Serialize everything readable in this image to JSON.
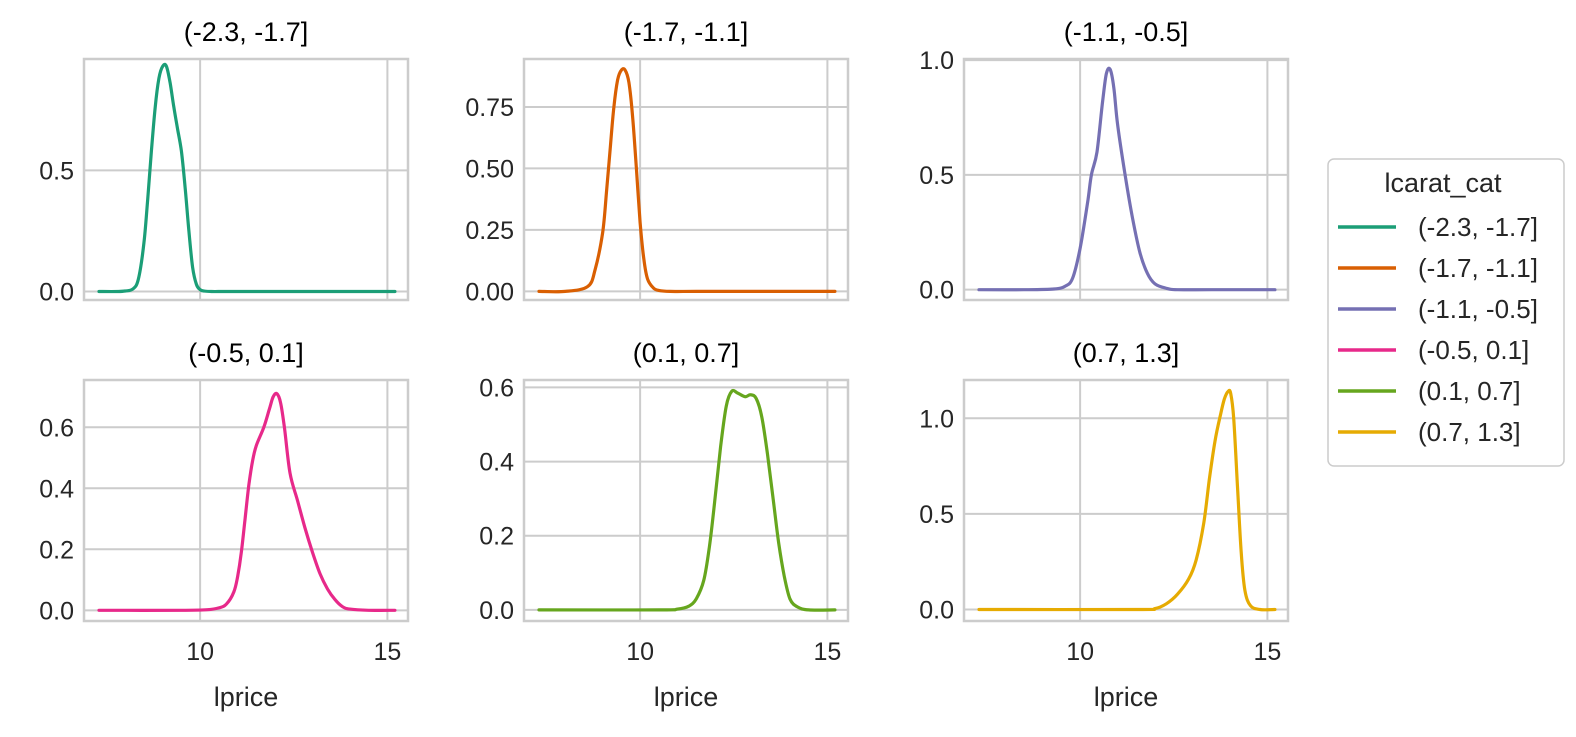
{
  "legend": {
    "title": "lcarat_cat",
    "entries": [
      "(-2.3, -1.7]",
      "(-1.7, -1.1]",
      "(-1.1, -0.5]",
      "(-0.5, 0.1]",
      "(0.1, 0.7]",
      "(0.7, 1.3]"
    ]
  },
  "chart_data": [
    {
      "type": "line",
      "title": "(-2.3, -1.7]",
      "xlabel": "",
      "ylabel": "",
      "xlim": [
        6.9,
        15.55
      ],
      "ylim": [
        -0.035,
        0.96
      ],
      "xticks": [
        10,
        15
      ],
      "xtick_labels_visible": false,
      "yticks": [
        0.0,
        0.5
      ],
      "ytick_labels": [
        "0.0",
        "0.5"
      ],
      "grid": true,
      "color": "#1b9e77",
      "series": [
        {
          "x": [
            7.3,
            7.8,
            8.0,
            8.2,
            8.35,
            8.5,
            8.6,
            8.7,
            8.8,
            8.9,
            9.0,
            9.1,
            9.2,
            9.3,
            9.4,
            9.5,
            9.6,
            9.7,
            9.8,
            9.9,
            10.0,
            10.1,
            10.3,
            10.6,
            11.0,
            12.0,
            13.0,
            14.0,
            15.2
          ],
          "y": [
            0.0,
            0.0,
            0.002,
            0.01,
            0.05,
            0.2,
            0.38,
            0.58,
            0.76,
            0.88,
            0.93,
            0.93,
            0.86,
            0.76,
            0.67,
            0.58,
            0.43,
            0.25,
            0.1,
            0.03,
            0.008,
            0.002,
            0.0,
            0.0,
            0.0,
            0.0,
            0.0,
            0.0,
            0.0
          ]
        }
      ]
    },
    {
      "type": "line",
      "title": "(-1.7, -1.1]",
      "xlabel": "",
      "ylabel": "",
      "xlim": [
        6.9,
        15.55
      ],
      "ylim": [
        -0.035,
        0.945
      ],
      "xticks": [
        10,
        15
      ],
      "xtick_labels_visible": false,
      "yticks": [
        0.0,
        0.25,
        0.5,
        0.75
      ],
      "ytick_labels": [
        "0.00",
        "0.25",
        "0.50",
        "0.75"
      ],
      "grid": true,
      "color": "#d95f02",
      "series": [
        {
          "x": [
            7.3,
            8.0,
            8.6,
            8.8,
            9.0,
            9.1,
            9.2,
            9.3,
            9.4,
            9.5,
            9.6,
            9.7,
            9.8,
            9.9,
            10.0,
            10.1,
            10.2,
            10.35,
            10.5,
            10.8,
            11.5,
            13.0,
            15.2
          ],
          "y": [
            0.0,
            0.0,
            0.02,
            0.09,
            0.24,
            0.4,
            0.58,
            0.75,
            0.86,
            0.9,
            0.9,
            0.85,
            0.71,
            0.5,
            0.28,
            0.13,
            0.05,
            0.015,
            0.004,
            0.0,
            0.0,
            0.0,
            0.0
          ]
        }
      ]
    },
    {
      "type": "line",
      "title": "(-1.1, -0.5]",
      "xlabel": "",
      "ylabel": "",
      "xlim": [
        6.9,
        15.55
      ],
      "ylim": [
        -0.045,
        1.005
      ],
      "xticks": [
        10,
        15
      ],
      "xtick_labels_visible": false,
      "yticks": [
        0.0,
        0.5,
        1.0
      ],
      "ytick_labels": [
        "0.0",
        "0.5",
        "1.0"
      ],
      "grid": true,
      "color": "#7570b3",
      "series": [
        {
          "x": [
            7.3,
            8.5,
            9.3,
            9.6,
            9.8,
            10.0,
            10.2,
            10.3,
            10.45,
            10.6,
            10.7,
            10.8,
            10.9,
            11.0,
            11.2,
            11.4,
            11.6,
            11.8,
            12.0,
            12.3,
            12.6,
            13.5,
            15.2
          ],
          "y": [
            0.0,
            0.0,
            0.003,
            0.015,
            0.05,
            0.18,
            0.38,
            0.5,
            0.6,
            0.82,
            0.94,
            0.96,
            0.88,
            0.72,
            0.5,
            0.31,
            0.16,
            0.07,
            0.025,
            0.006,
            0.0,
            0.0,
            0.0
          ]
        }
      ]
    },
    {
      "type": "line",
      "title": "(-0.5, 0.1]",
      "xlabel": "",
      "ylabel": "",
      "xlim": [
        6.9,
        15.55
      ],
      "ylim": [
        -0.035,
        0.755
      ],
      "xticks": [
        10,
        15
      ],
      "xtick_labels_visible": true,
      "xtick_labels": [
        "10",
        "15"
      ],
      "yticks": [
        0.0,
        0.2,
        0.4,
        0.6
      ],
      "ytick_labels": [
        "0.0",
        "0.2",
        "0.4",
        "0.6"
      ],
      "grid": true,
      "color": "#e7298a",
      "series": [
        {
          "x": [
            7.3,
            9.5,
            10.2,
            10.5,
            10.7,
            10.9,
            11.0,
            11.1,
            11.2,
            11.3,
            11.4,
            11.5,
            11.7,
            11.85,
            11.95,
            12.05,
            12.15,
            12.25,
            12.4,
            12.6,
            12.8,
            13.0,
            13.2,
            13.4,
            13.6,
            13.8,
            14.0,
            14.5,
            15.2
          ],
          "y": [
            0.0,
            0.0,
            0.002,
            0.008,
            0.02,
            0.06,
            0.11,
            0.19,
            0.3,
            0.41,
            0.49,
            0.54,
            0.6,
            0.66,
            0.7,
            0.71,
            0.68,
            0.6,
            0.45,
            0.36,
            0.27,
            0.19,
            0.12,
            0.07,
            0.035,
            0.012,
            0.004,
            0.0,
            0.0
          ]
        }
      ]
    },
    {
      "type": "line",
      "title": "(0.1, 0.7]",
      "xlabel": "",
      "ylabel": "",
      "xlim": [
        6.9,
        15.55
      ],
      "ylim": [
        -0.03,
        0.62
      ],
      "xticks": [
        10,
        15
      ],
      "xtick_labels_visible": true,
      "xtick_labels": [
        "10",
        "15"
      ],
      "yticks": [
        0.0,
        0.2,
        0.4,
        0.6
      ],
      "ytick_labels": [
        "0.0",
        "0.2",
        "0.4",
        "0.6"
      ],
      "grid": true,
      "color": "#66a61e",
      "series": [
        {
          "x": [
            7.3,
            10.5,
            11.0,
            11.3,
            11.5,
            11.7,
            11.85,
            12.0,
            12.15,
            12.3,
            12.45,
            12.6,
            12.8,
            12.95,
            13.1,
            13.25,
            13.4,
            13.55,
            13.7,
            13.85,
            14.0,
            14.2,
            14.5,
            15.2
          ],
          "y": [
            0.0,
            0.0,
            0.002,
            0.01,
            0.03,
            0.08,
            0.17,
            0.3,
            0.44,
            0.55,
            0.59,
            0.585,
            0.575,
            0.58,
            0.57,
            0.52,
            0.42,
            0.3,
            0.18,
            0.09,
            0.03,
            0.008,
            0.0,
            0.0
          ]
        }
      ]
    },
    {
      "type": "line",
      "title": "(0.7, 1.3]",
      "xlabel": "",
      "ylabel": "",
      "xlim": [
        6.9,
        15.55
      ],
      "ylim": [
        -0.06,
        1.2
      ],
      "xticks": [
        10,
        15
      ],
      "xtick_labels_visible": true,
      "xtick_labels": [
        "10",
        "15"
      ],
      "yticks": [
        0.0,
        0.5,
        1.0
      ],
      "ytick_labels": [
        "0.0",
        "0.5",
        "1.0"
      ],
      "grid": true,
      "color": "#e6ab02",
      "series": [
        {
          "x": [
            7.3,
            11.5,
            12.0,
            12.3,
            12.6,
            12.9,
            13.1,
            13.3,
            13.45,
            13.6,
            13.75,
            13.85,
            13.95,
            14.02,
            14.1,
            14.2,
            14.3,
            14.4,
            14.55,
            14.8,
            15.2
          ],
          "y": [
            0.0,
            0.0,
            0.005,
            0.03,
            0.08,
            0.16,
            0.26,
            0.45,
            0.68,
            0.88,
            1.02,
            1.1,
            1.14,
            1.13,
            1.0,
            0.65,
            0.3,
            0.1,
            0.02,
            0.0,
            0.0
          ]
        }
      ]
    }
  ],
  "shared_xlabel": "lprice"
}
